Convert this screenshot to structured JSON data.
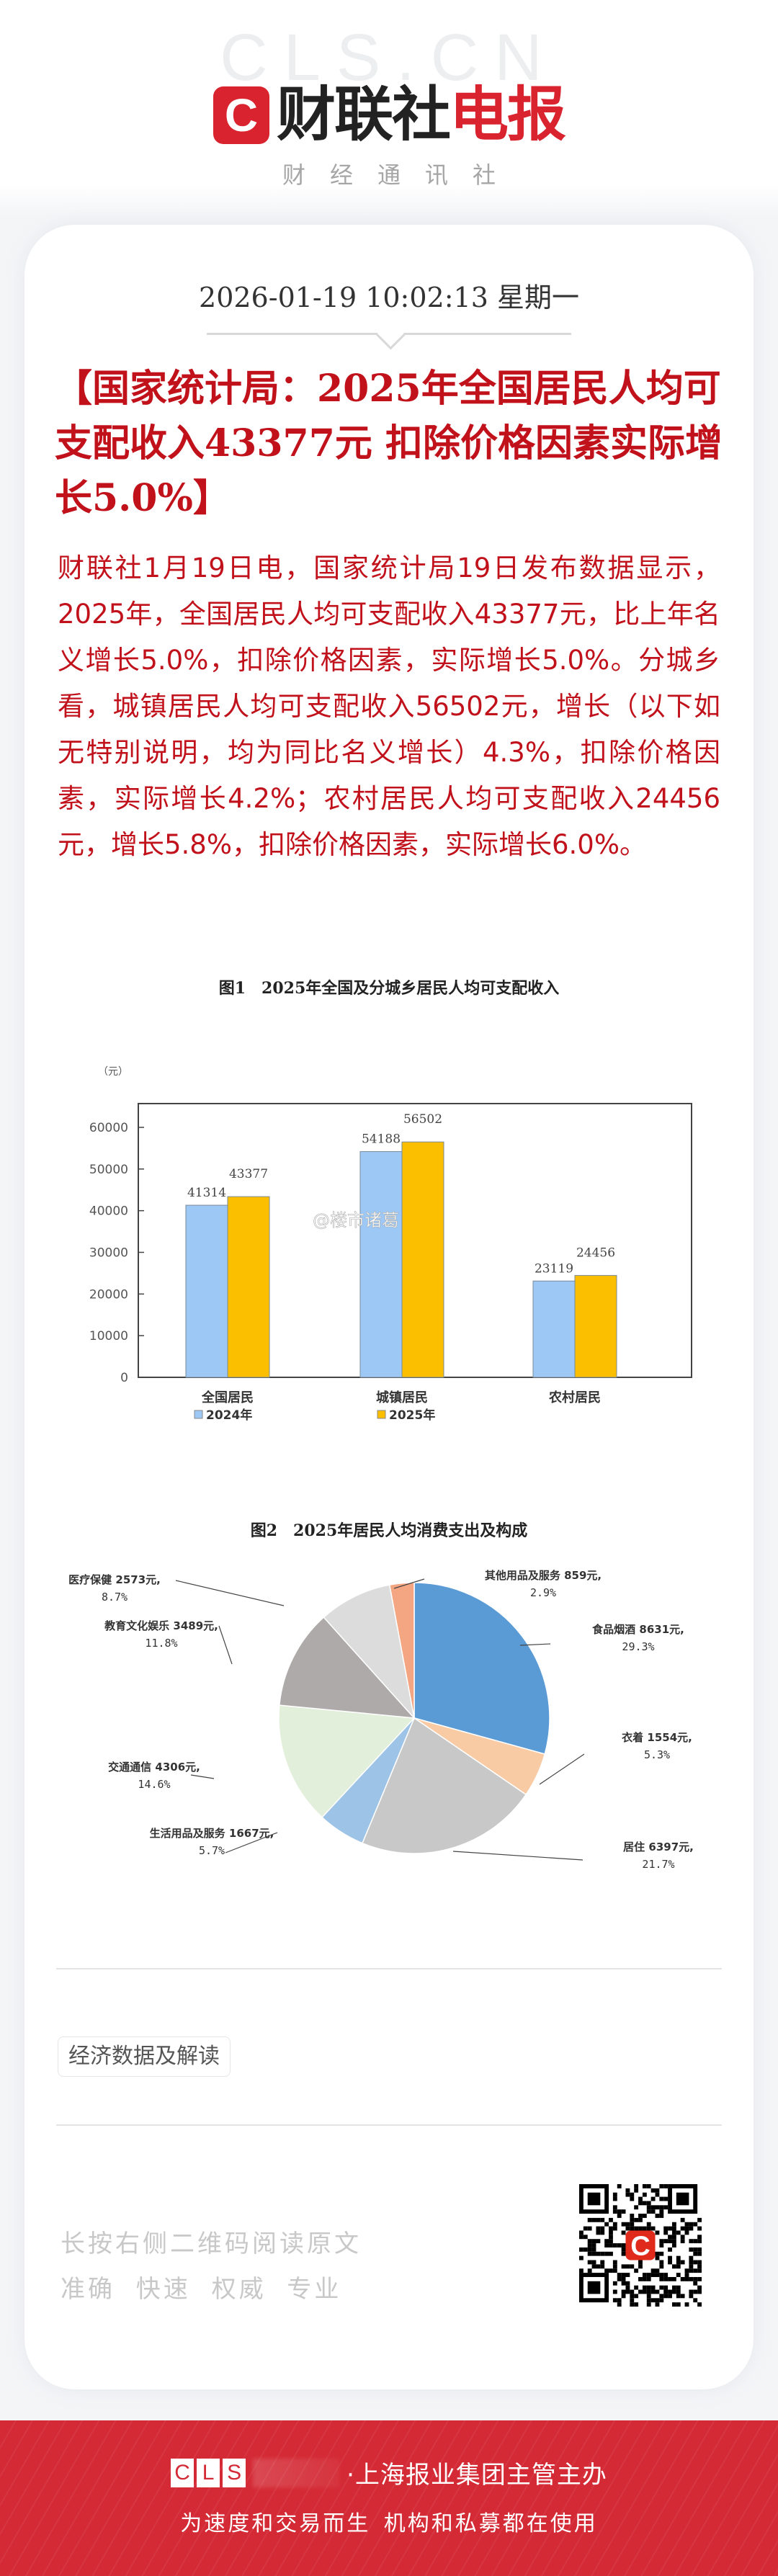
{
  "header": {
    "watermark": "CLS.CN",
    "logo_icon": "C",
    "brand_black": "财联社",
    "brand_red": "电报",
    "subtitle": "财经通讯社"
  },
  "article": {
    "datetime": "2026-01-19 10:02:13 星期一",
    "headline": "【国家统计局：2025年全国居民人均可支配收入43377元 扣除价格因素实际增长5.0%】",
    "body": "财联社1月19日电，国家统计局19日发布数据显示，2025年，全国居民人均可支配收入43377元，比上年名义增长5.0%，扣除价格因素，实际增长5.0%。分城乡看，城镇居民人均可支配收入56502元，增长（以下如无特别说明，均为同比名义增长）4.3%，扣除价格因素，实际增长4.2%；农村居民人均可支配收入24456元，增长5.8%，扣除价格因素，实际增长6.0%。",
    "tag": "经济数据及解读"
  },
  "chart_data": [
    {
      "type": "bar",
      "title": "图1　2025年全国及分城乡居民人均可支配收入",
      "ylabel": "（元）",
      "xlabel": "",
      "categories": [
        "全国居民",
        "城镇居民",
        "农村居民"
      ],
      "series": [
        {
          "name": "2024年",
          "color": "#9dc8f5",
          "values": [
            41314,
            54188,
            23119
          ]
        },
        {
          "name": "2025年",
          "color": "#fbbf00",
          "values": [
            43377,
            56502,
            24456
          ]
        }
      ],
      "yticks": [
        0,
        10000,
        20000,
        30000,
        40000,
        50000,
        60000
      ],
      "ylim": [
        0,
        65000
      ],
      "grid": false,
      "legend_position": "bottom",
      "watermark": "@楼市诸葛"
    },
    {
      "type": "pie",
      "title": "图2　2025年居民人均消费支出及构成",
      "slices": [
        {
          "label": "食品烟酒",
          "value": 8631,
          "pct": 29.3,
          "text": "食品烟酒 8631元,",
          "pct_text": "29.3%",
          "color": "#5b9bd5"
        },
        {
          "label": "衣着",
          "value": 1554,
          "pct": 5.3,
          "text": "衣着 1554元,",
          "pct_text": "5.3%",
          "color": "#f8cba5"
        },
        {
          "label": "居住",
          "value": 6397,
          "pct": 21.7,
          "text": "居住 6397元,",
          "pct_text": "21.7%",
          "color": "#c8c8c8"
        },
        {
          "label": "生活用品及服务",
          "value": 1667,
          "pct": 5.7,
          "text": "生活用品及服务 1667元,",
          "pct_text": "5.7%",
          "color": "#9dc3e6"
        },
        {
          "label": "交通通信",
          "value": 4306,
          "pct": 14.6,
          "text": "交通通信 4306元,",
          "pct_text": "14.6%",
          "color": "#e2efda"
        },
        {
          "label": "教育文化娱乐",
          "value": 3489,
          "pct": 11.8,
          "text": "教育文化娱乐 3489元,",
          "pct_text": "11.8%",
          "color": "#aeaaaa"
        },
        {
          "label": "医疗保健",
          "value": 2573,
          "pct": 8.7,
          "text": "医疗保健 2573元,",
          "pct_text": "8.7%",
          "color": "#dcdcdc"
        },
        {
          "label": "其他用品及服务",
          "value": 859,
          "pct": 2.9,
          "text": "其他用品及服务 859元,",
          "pct_text": "2.9%",
          "color": "#f4a582"
        }
      ]
    }
  ],
  "footer": {
    "note_line1": "长按右侧二维码阅读原文",
    "note_line2": "准确 快速 权威 专业",
    "qr_center_icon": "C"
  },
  "banner": {
    "cls_letters": [
      "C",
      "L",
      "S"
    ],
    "line1": "·上海报业集团主管主办",
    "line2": "为速度和交易而生 机构和私募都在使用"
  }
}
